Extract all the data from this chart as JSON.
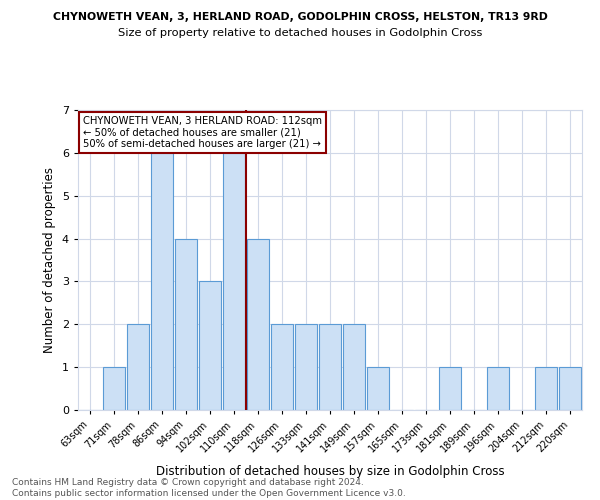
{
  "title": "CHYNOWETH VEAN, 3, HERLAND ROAD, GODOLPHIN CROSS, HELSTON, TR13 9RD",
  "subtitle": "Size of property relative to detached houses in Godolphin Cross",
  "xlabel": "Distribution of detached houses by size in Godolphin Cross",
  "ylabel": "Number of detached properties",
  "categories": [
    "63sqm",
    "71sqm",
    "78sqm",
    "86sqm",
    "94sqm",
    "102sqm",
    "110sqm",
    "118sqm",
    "126sqm",
    "133sqm",
    "141sqm",
    "149sqm",
    "157sqm",
    "165sqm",
    "173sqm",
    "181sqm",
    "189sqm",
    "196sqm",
    "204sqm",
    "212sqm",
    "220sqm"
  ],
  "values": [
    0,
    1,
    2,
    6,
    4,
    3,
    6,
    4,
    2,
    2,
    2,
    2,
    1,
    0,
    0,
    1,
    0,
    1,
    0,
    1,
    1
  ],
  "bar_color": "#cce0f5",
  "bar_edge_color": "#5b9bd5",
  "reference_line_x": 6.5,
  "reference_line_color": "#8b0000",
  "annotation_text": "CHYNOWETH VEAN, 3 HERLAND ROAD: 112sqm\n← 50% of detached houses are smaller (21)\n50% of semi-detached houses are larger (21) →",
  "annotation_box_color": "#8b0000",
  "ylim": [
    0,
    7
  ],
  "yticks": [
    0,
    1,
    2,
    3,
    4,
    5,
    6,
    7
  ],
  "footer_text": "Contains HM Land Registry data © Crown copyright and database right 2024.\nContains public sector information licensed under the Open Government Licence v3.0.",
  "bg_color": "#ffffff",
  "grid_color": "#d0d8e8"
}
